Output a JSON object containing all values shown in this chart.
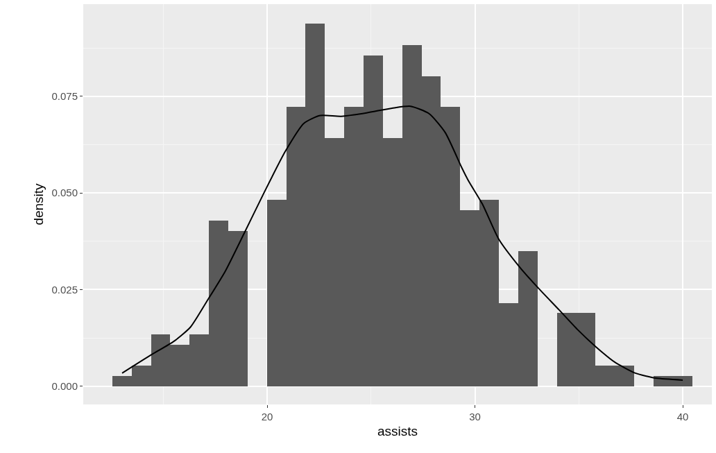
{
  "chart_data": {
    "type": "histogram",
    "xlabel": "assists",
    "ylabel": "density",
    "bins": [
      12.55,
      13.48,
      14.41,
      15.34,
      16.27,
      17.2,
      18.13,
      19.06,
      19.99,
      20.92,
      21.85,
      22.78,
      23.71,
      24.64,
      25.57,
      26.5,
      27.43,
      28.36,
      29.29,
      30.22,
      31.15,
      32.08,
      33.01,
      33.94,
      34.87,
      35.8,
      36.73,
      37.66,
      38.59,
      39.52,
      40.45
    ],
    "values": [
      0.0027,
      0.0054,
      0.0135,
      0.0108,
      0.0135,
      0.0428,
      0.0402,
      0,
      0.0483,
      0.0722,
      0.0937,
      0.0642,
      0.0722,
      0.0856,
      0.0642,
      0.0883,
      0.0802,
      0.0722,
      0.0455,
      0.0482,
      0.0215,
      0.0349,
      0,
      0.0189,
      0.0189,
      0.0054,
      0.0054,
      0,
      0.0027,
      0.0027
    ],
    "color": "#595959",
    "series": [
      {
        "type": "line",
        "color": "#000000",
        "x": [
          13.02,
          14.41,
          15.53,
          16.31,
          17.09,
          17.98,
          18.87,
          19.8,
          20.88,
          21.77,
          22.55,
          23.56,
          24.78,
          26.01,
          26.9,
          27.79,
          28.57,
          29.35,
          29.69,
          30.36,
          31.14,
          32.14,
          33.03,
          34.04,
          34.93,
          35.82,
          36.71,
          37.72,
          38.72,
          40.0
        ],
        "values": [
          0.0034,
          0.0081,
          0.0117,
          0.0153,
          0.0219,
          0.0297,
          0.0393,
          0.0495,
          0.0608,
          0.068,
          0.07,
          0.0698,
          0.0707,
          0.0719,
          0.0724,
          0.0705,
          0.0656,
          0.0567,
          0.0531,
          0.0471,
          0.0381,
          0.0309,
          0.0255,
          0.0198,
          0.0147,
          0.0102,
          0.0063,
          0.0034,
          0.0021,
          0.0016
        ]
      }
    ],
    "xlim": [
      11.15,
      41.4
    ],
    "xticks": [
      20,
      30,
      40
    ],
    "ylim": [
      -0.0047,
      0.0988
    ],
    "yticks": [
      {
        "value": 0,
        "label": "0.000"
      },
      {
        "value": 0.025,
        "label": "0.025"
      },
      {
        "value": 0.05,
        "label": "0.050"
      },
      {
        "value": 0.075,
        "label": "0.075"
      }
    ],
    "grid": true
  }
}
